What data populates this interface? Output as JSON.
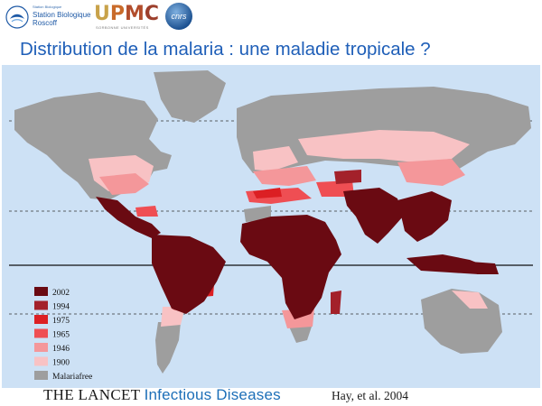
{
  "header": {
    "logos": {
      "station": {
        "small_text": "Station Biologique",
        "line1": "Station Biologique",
        "line2": "Roscoff"
      },
      "upmc": {
        "wordmark": "UPMC",
        "subtext": "SORBONNE UNIVERSITÉS"
      },
      "cnrs": {
        "wordmark": "cnrs"
      }
    }
  },
  "slide": {
    "title": "Distribution de la malaria : une maladie tropicale ?"
  },
  "map": {
    "colors": {
      "ocean": "#cde1f5",
      "malaria_free": "#9e9e9e",
      "y2002": "#6a0a12",
      "y1994": "#a3212a",
      "y1975": "#dc1f23",
      "y1965": "#ef4e53",
      "y1946": "#f4979a",
      "y1900": "#f8c2c4"
    },
    "legend": [
      {
        "label": "2002",
        "color": "#6a0a12"
      },
      {
        "label": "1994",
        "color": "#a3212a"
      },
      {
        "label": "1975",
        "color": "#dc1f23"
      },
      {
        "label": "1965",
        "color": "#ef4e53"
      },
      {
        "label": "1946",
        "color": "#f4979a"
      },
      {
        "label": "1900",
        "color": "#f8c2c4"
      },
      {
        "label": "Malariafree",
        "color": "#9e9e9e"
      }
    ]
  },
  "footer": {
    "source_part1": "THE LANCET ",
    "source_part2": "Infectious Diseases",
    "citation": "Hay, et al. 2004"
  }
}
